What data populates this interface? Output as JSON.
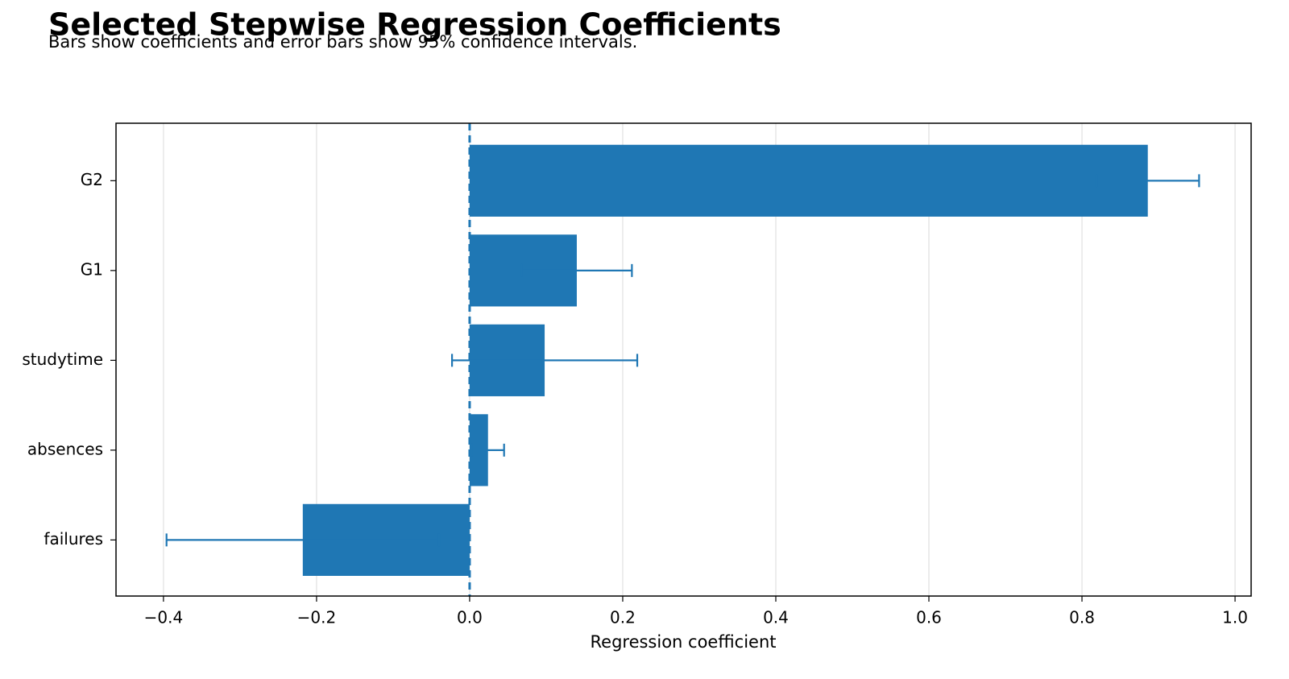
{
  "chart_data": {
    "type": "barh_error",
    "title": "Selected Stepwise Regression Coefficients",
    "subtitle": "Bars show coefficients and error bars show 95% confidence intervals.",
    "x_label": "Regression coefficient",
    "categories": [
      "G2",
      "G1",
      "studytime",
      "absences",
      "failures"
    ],
    "values": [
      0.886,
      0.14,
      0.098,
      0.024,
      -0.218
    ],
    "errors": [
      0.067,
      0.072,
      0.121,
      0.021,
      0.178
    ],
    "color": "#1f77b4",
    "xlim": [
      -0.462,
      1.021
    ],
    "xticks": [
      {
        "value": -0.4,
        "label": "−0.4"
      },
      {
        "value": -0.2,
        "label": "−0.2"
      },
      {
        "value": 0,
        "label": "0.0"
      },
      {
        "value": 0.2,
        "label": "0.2"
      },
      {
        "value": 0.4,
        "label": "0.4"
      },
      {
        "value": 0.6,
        "label": "0.6"
      },
      {
        "value": 0.8,
        "label": "0.8"
      },
      {
        "value": 1.0,
        "label": "1.0"
      }
    ],
    "grid": true,
    "zero_line": true
  }
}
